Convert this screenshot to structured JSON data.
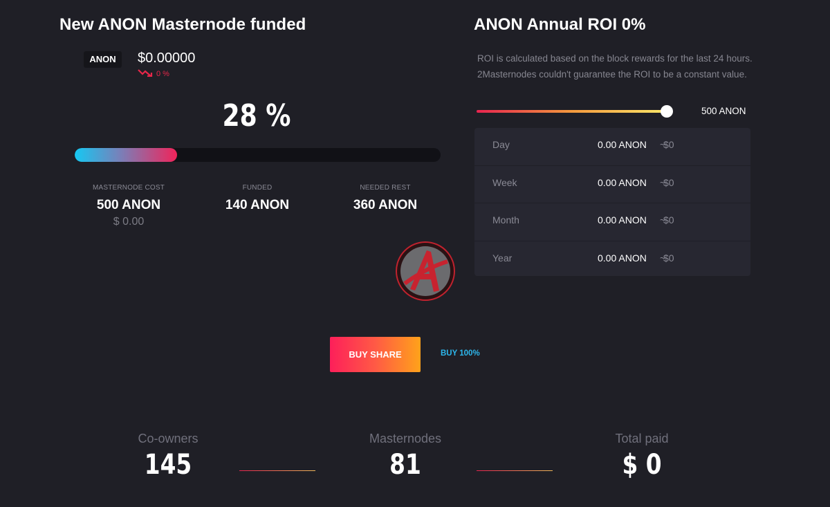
{
  "left": {
    "title": "New ANON Masternode funded",
    "coin_badge": "ANON",
    "price": "$0.00000",
    "price_change": "0 %",
    "funded_percent_label": "28 %",
    "progress_fraction": 0.28,
    "stats": [
      {
        "label": "MASTERNODE COST",
        "value": "500 ANON",
        "usd": "$ 0.00"
      },
      {
        "label": "FUNDED",
        "value": "140 ANON"
      },
      {
        "label": "NEEDED REST",
        "value": "360 ANON"
      }
    ]
  },
  "right": {
    "title": "ANON Annual ROI 0%",
    "description": "ROI is calculated based on the block rewards for the last 24 hours. 2Masternodes couldn't guarantee the ROI to be a constant value.",
    "slider_value": "500 ANON",
    "slider_fraction": 1.0,
    "rows": [
      {
        "period": "Day",
        "amount": "0.00 ANON",
        "tilde": "~",
        "usd": "$0"
      },
      {
        "period": "Week",
        "amount": "0.00 ANON",
        "tilde": "~",
        "usd": "$0"
      },
      {
        "period": "Month",
        "amount": "0.00 ANON",
        "tilde": "~",
        "usd": "$0"
      },
      {
        "period": "Year",
        "amount": "0.00 ANON",
        "tilde": "~",
        "usd": "$0"
      }
    ]
  },
  "actions": {
    "buy_share": "BUY SHARE",
    "buy_100": "BUY 100%"
  },
  "bottom": [
    {
      "label": "Co-owners",
      "value": "145"
    },
    {
      "label": "Masternodes",
      "value": "81"
    },
    {
      "label": "Total paid",
      "value": "$ 0"
    }
  ],
  "colors": {
    "background": "#1f1f26",
    "accent_red": "#e8274a",
    "accent_blue": "#2db7ec",
    "panel": "#272731"
  },
  "icons": {
    "trend": "trend-down-icon",
    "logo": "anon-logo-icon"
  }
}
